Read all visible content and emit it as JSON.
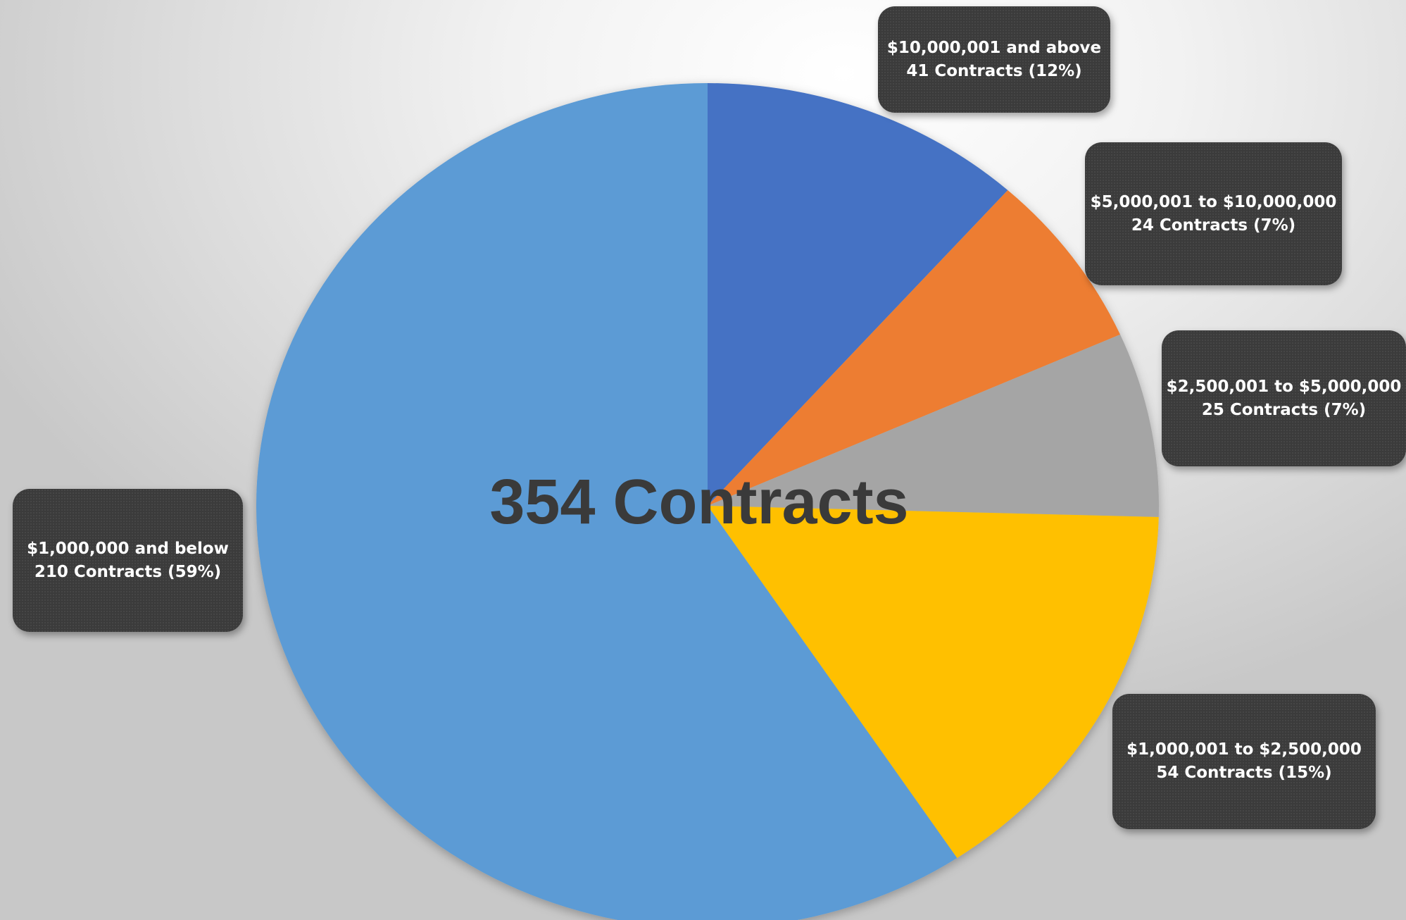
{
  "chart_data": {
    "type": "pie",
    "center_label": "354 Contracts",
    "slices": [
      {
        "label": "$10,000,001 and above",
        "count_label": "41 Contracts",
        "pct_label": "(12%)",
        "value": 41,
        "color": "#4472c4"
      },
      {
        "label": "$5,000,001 to $10,000,000",
        "count_label": "24 Contracts",
        "pct_label": "(7%)",
        "value": 24,
        "color": "#ed7d31"
      },
      {
        "label": "$2,500,001 to $5,000,000",
        "count_label": "25 Contracts",
        "pct_label": "(7%)",
        "value": 25,
        "color": "#a5a5a5"
      },
      {
        "label": "$1,000,001 to $2,500,000",
        "count_label": "54 Contracts",
        "pct_label": "(15%)",
        "value": 54,
        "color": "#ffc000"
      },
      {
        "label": "$1,000,000 and below",
        "count_label": "210 Contracts",
        "pct_label": "(59%)",
        "value": 210,
        "color": "#5b9bd5"
      }
    ]
  }
}
